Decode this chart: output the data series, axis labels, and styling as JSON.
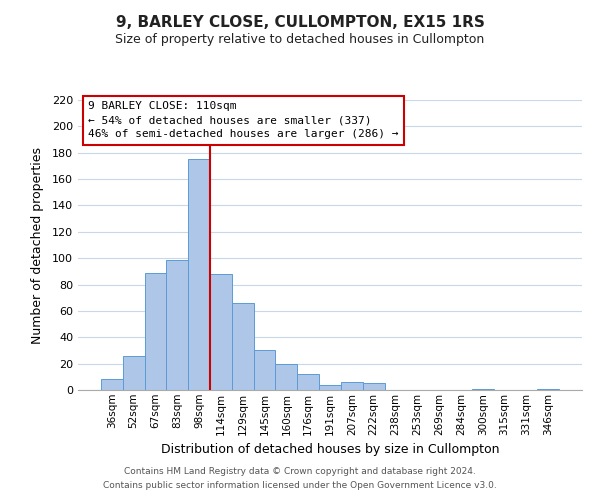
{
  "title": "9, BARLEY CLOSE, CULLOMPTON, EX15 1RS",
  "subtitle": "Size of property relative to detached houses in Cullompton",
  "xlabel": "Distribution of detached houses by size in Cullompton",
  "ylabel": "Number of detached properties",
  "bin_labels": [
    "36sqm",
    "52sqm",
    "67sqm",
    "83sqm",
    "98sqm",
    "114sqm",
    "129sqm",
    "145sqm",
    "160sqm",
    "176sqm",
    "191sqm",
    "207sqm",
    "222sqm",
    "238sqm",
    "253sqm",
    "269sqm",
    "284sqm",
    "300sqm",
    "315sqm",
    "331sqm",
    "346sqm"
  ],
  "bar_heights": [
    8,
    26,
    89,
    99,
    175,
    88,
    66,
    30,
    20,
    12,
    4,
    6,
    5,
    0,
    0,
    0,
    0,
    1,
    0,
    0,
    1
  ],
  "bar_color": "#aec6e8",
  "bar_edge_color": "#5b9bd5",
  "vline_color": "#cc0000",
  "ylim": [
    0,
    220
  ],
  "yticks": [
    0,
    20,
    40,
    60,
    80,
    100,
    120,
    140,
    160,
    180,
    200,
    220
  ],
  "annotation_title": "9 BARLEY CLOSE: 110sqm",
  "annotation_line1": "← 54% of detached houses are smaller (337)",
  "annotation_line2": "46% of semi-detached houses are larger (286) →",
  "footer1": "Contains HM Land Registry data © Crown copyright and database right 2024.",
  "footer2": "Contains public sector information licensed under the Open Government Licence v3.0.",
  "background_color": "#ffffff",
  "grid_color": "#c8d8e8"
}
